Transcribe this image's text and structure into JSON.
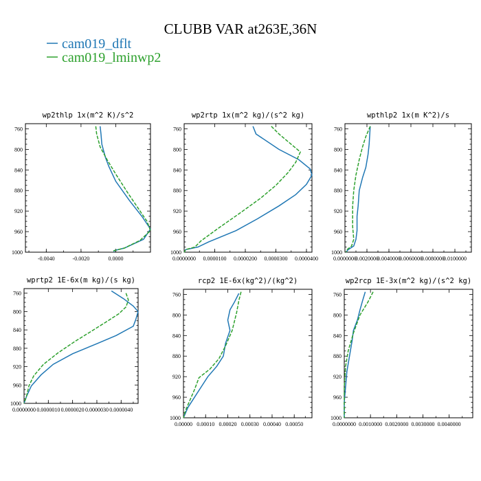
{
  "figure": {
    "title": "CLUBB VAR at263E,36N",
    "legend": [
      {
        "label": "cam019_dflt",
        "color": "#1f77b4"
      },
      {
        "label": "cam019_lminwp2",
        "color": "#2ca02c"
      }
    ]
  },
  "chart_data": [
    {
      "type": "line",
      "title": "wp2thlp  1x(m^2 K)/s^2",
      "xlim": [
        -0.0052,
        0.002
      ],
      "ylim": [
        1000,
        750
      ],
      "xticks": [
        -0.004,
        -0.002,
        0.0
      ],
      "xtick_labels": [
        "-0.0040",
        "-0.0020",
        "0.0000"
      ],
      "yticks": [
        760,
        800,
        840,
        880,
        920,
        960,
        1000
      ],
      "series": [
        {
          "name": "cam019_dflt",
          "color": "#1f77b4",
          "dash": "none",
          "points": [
            [
              -0.0009,
              755
            ],
            [
              -0.00085,
              770
            ],
            [
              -0.0008,
              790
            ],
            [
              -0.0006,
              815
            ],
            [
              -0.0004,
              833
            ],
            [
              0.0,
              862
            ],
            [
              0.0008,
              900
            ],
            [
              0.0015,
              930
            ],
            [
              0.002,
              955
            ],
            [
              0.0016,
              975
            ],
            [
              0.0005,
              992
            ],
            [
              -0.0001,
              997
            ],
            [
              -0.0001,
              1000
            ]
          ]
        },
        {
          "name": "cam019_lminwp2",
          "color": "#2ca02c",
          "dash": "5,2",
          "points": [
            [
              -0.00115,
              755
            ],
            [
              -0.0011,
              770
            ],
            [
              -0.0009,
              795
            ],
            [
              -0.0005,
              820
            ],
            [
              0.0,
              848
            ],
            [
              0.0007,
              885
            ],
            [
              0.0013,
              915
            ],
            [
              0.0018,
              940
            ],
            [
              0.002,
              958
            ],
            [
              0.0014,
              977
            ],
            [
              0.0005,
              992
            ],
            [
              -0.0001,
              997
            ],
            [
              -0.0001,
              1000
            ]
          ]
        }
      ]
    },
    {
      "type": "line",
      "title": "wp2rtp  1x(m^2 kg)/(s^2 kg)",
      "xlim": [
        0.0,
        4.18e-05
      ],
      "ylim": [
        1000,
        750
      ],
      "xticks": [
        0.0,
        1e-05,
        2e-05,
        3e-05,
        4e-05
      ],
      "xtick_labels": [
        "0.0000000",
        "0.0000100",
        "0.0000200",
        "0.0000300",
        "0.0000400"
      ],
      "yticks": [
        760,
        800,
        840,
        880,
        920,
        960,
        1000
      ],
      "series": [
        {
          "name": "cam019_dflt",
          "color": "#1f77b4",
          "dash": "none",
          "points": [
            [
              2.25e-05,
              755
            ],
            [
              2.35e-05,
              770
            ],
            [
              3.1e-05,
              800
            ],
            [
              3.75e-05,
              820
            ],
            [
              4.12e-05,
              838
            ],
            [
              4.18e-05,
              850
            ],
            [
              4e-05,
              868
            ],
            [
              3.65e-05,
              888
            ],
            [
              3.1e-05,
              910
            ],
            [
              2.4e-05,
              935
            ],
            [
              1.7e-05,
              958
            ],
            [
              8e-06,
              980
            ],
            [
              4.5e-06,
              990
            ],
            [
              5e-07,
              995
            ],
            [
              0.0,
              1000
            ]
          ]
        },
        {
          "name": "cam019_lminwp2",
          "color": "#2ca02c",
          "dash": "5,2",
          "points": [
            [
              2.85e-05,
              755
            ],
            [
              3.1e-05,
              770
            ],
            [
              3.5e-05,
              790
            ],
            [
              3.8e-05,
              805
            ],
            [
              3.65e-05,
              825
            ],
            [
              3.4e-05,
              845
            ],
            [
              3e-05,
              870
            ],
            [
              2.5e-05,
              895
            ],
            [
              1.8e-05,
              925
            ],
            [
              1.15e-05,
              952
            ],
            [
              5.5e-06,
              978
            ],
            [
              3.5e-06,
              990
            ],
            [
              5e-07,
              995
            ],
            [
              0.0,
              1000
            ]
          ]
        }
      ]
    },
    {
      "type": "line",
      "title": "wpthlp2  1x(m K^2)/s",
      "xlim": [
        0.0,
        0.0115
      ],
      "ylim": [
        1000,
        750
      ],
      "xticks": [
        0.0,
        0.002,
        0.004,
        0.006,
        0.008,
        0.01
      ],
      "xtick_labels": [
        "0.0000000",
        "0.0020000",
        "0.0040000",
        "0.0060000",
        "0.0080000",
        "0.0100000"
      ],
      "yticks": [
        760,
        800,
        840,
        880,
        920,
        960,
        1000
      ],
      "series": [
        {
          "name": "cam019_dflt",
          "color": "#1f77b4",
          "dash": "none",
          "points": [
            [
              0.0023,
              755
            ],
            [
              0.0022,
              790
            ],
            [
              0.0021,
              810
            ],
            [
              0.0019,
              835
            ],
            [
              0.0016,
              855
            ],
            [
              0.0013,
              880
            ],
            [
              0.0012,
              910
            ],
            [
              0.0011,
              930
            ],
            [
              0.0011,
              958
            ],
            [
              0.001,
              975
            ],
            [
              0.0008,
              988
            ],
            [
              0.0003,
              995
            ],
            [
              0.0001,
              1000
            ]
          ]
        },
        {
          "name": "cam019_lminwp2",
          "color": "#2ca02c",
          "dash": "5,2",
          "points": [
            [
              0.0023,
              755
            ],
            [
              0.0019,
              775
            ],
            [
              0.0016,
              795
            ],
            [
              0.0013,
              820
            ],
            [
              0.001,
              850
            ],
            [
              0.0008,
              880
            ],
            [
              0.0007,
              910
            ],
            [
              0.0007,
              950
            ],
            [
              0.0008,
              975
            ],
            [
              0.0006,
              988
            ],
            [
              0.0002,
              995
            ],
            [
              0.0001,
              1000
            ]
          ]
        }
      ]
    },
    {
      "type": "line",
      "title": "wprtp2  1E-6x(m kg)/(s kg)",
      "xlim": [
        0.0,
        4.7e-06
      ],
      "ylim": [
        1000,
        750
      ],
      "xticks": [
        0.0,
        1e-06,
        2e-06,
        3e-06,
        4e-06
      ],
      "xtick_labels": [
        "0.0000000",
        "0.0000010",
        "0.0000020",
        "0.0000030",
        "0.0000040"
      ],
      "yticks": [
        760,
        800,
        840,
        880,
        920,
        960,
        1000
      ],
      "series": [
        {
          "name": "cam019_dflt",
          "color": "#1f77b4",
          "dash": "none",
          "points": [
            [
              3.6e-06,
              755
            ],
            [
              4.1e-06,
              772
            ],
            [
              4.5e-06,
              788
            ],
            [
              4.7e-06,
              800
            ],
            [
              4.6e-06,
              818
            ],
            [
              4.5e-06,
              832
            ],
            [
              3.8e-06,
              852
            ],
            [
              3e-06,
              870
            ],
            [
              2e-06,
              892
            ],
            [
              1.2e-06,
              915
            ],
            [
              7e-07,
              938
            ],
            [
              3e-07,
              962
            ],
            [
              1e-07,
              985
            ],
            [
              0.0,
              1000
            ]
          ]
        },
        {
          "name": "cam019_lminwp2",
          "color": "#2ca02c",
          "dash": "5,2",
          "points": [
            [
              4.2e-06,
              760
            ],
            [
              4.3e-06,
              775
            ],
            [
              4.2e-06,
              790
            ],
            [
              3.9e-06,
              805
            ],
            [
              3.4e-06,
              822
            ],
            [
              2.8e-06,
              842
            ],
            [
              2.1e-06,
              865
            ],
            [
              1.4e-06,
              890
            ],
            [
              8e-07,
              915
            ],
            [
              4e-07,
              940
            ],
            [
              2e-07,
              962
            ],
            [
              1e-07,
              985
            ],
            [
              0.0,
              1000
            ]
          ]
        }
      ]
    },
    {
      "type": "line",
      "title": "rcp2  1E-6x(kg^2)/(kg^2)",
      "xlim": [
        0.0,
        0.00058
      ],
      "ylim": [
        1000,
        750
      ],
      "xticks": [
        0.0,
        0.0001,
        0.0002,
        0.0003,
        0.0004,
        0.0005
      ],
      "xtick_labels": [
        "0.00000",
        "0.00010",
        "0.00020",
        "0.00030",
        "0.00040",
        "0.00050"
      ],
      "yticks": [
        760,
        800,
        840,
        880,
        920,
        960,
        1000
      ],
      "series": [
        {
          "name": "cam019_dflt",
          "color": "#1f77b4",
          "dash": "none",
          "points": [
            [
              0.00025,
              758
            ],
            [
              0.00023,
              775
            ],
            [
              0.00021,
              790
            ],
            [
              0.0002,
              810
            ],
            [
              0.00021,
              830
            ],
            [
              0.00019,
              855
            ],
            [
              0.00018,
              880
            ],
            [
              0.00015,
              900
            ],
            [
              0.00011,
              920
            ],
            [
              8e-05,
              940
            ],
            [
              5e-05,
              960
            ],
            [
              2e-05,
              980
            ],
            [
              0.0,
              1000
            ]
          ]
        },
        {
          "name": "cam019_lminwp2",
          "color": "#2ca02c",
          "dash": "5,2",
          "points": [
            [
              0.00026,
              755
            ],
            [
              0.00025,
              772
            ],
            [
              0.00024,
              795
            ],
            [
              0.00022,
              830
            ],
            [
              0.00019,
              860
            ],
            [
              0.00016,
              885
            ],
            [
              0.00012,
              905
            ],
            [
              7e-05,
              922
            ],
            [
              5e-05,
              945
            ],
            [
              3e-05,
              965
            ],
            [
              1e-05,
              985
            ],
            [
              0.0,
              1000
            ]
          ]
        }
      ]
    },
    {
      "type": "line",
      "title": "wp2rcp  1E-3x(m^2 kg)/(s^2 kg)",
      "xlim": [
        0.0,
        0.0049
      ],
      "ylim": [
        1000,
        750
      ],
      "xticks": [
        0.0,
        0.001,
        0.002,
        0.003,
        0.004
      ],
      "xtick_labels": [
        "0.0000000",
        "0.0010000",
        "0.0020000",
        "0.0030000",
        "0.0040000"
      ],
      "yticks": [
        760,
        800,
        840,
        880,
        920,
        960,
        1000
      ],
      "series": [
        {
          "name": "cam019_dflt",
          "color": "#1f77b4",
          "dash": "none",
          "points": [
            [
              0.0008,
              755
            ],
            [
              0.0007,
              772
            ],
            [
              0.0006,
              790
            ],
            [
              0.0005,
              810
            ],
            [
              0.00035,
              830
            ],
            [
              0.0003,
              850
            ],
            [
              0.0002,
              880
            ],
            [
              0.0001,
              910
            ],
            [
              5e-05,
              940
            ],
            [
              0.0,
              970
            ],
            [
              0.0,
              1000
            ]
          ]
        },
        {
          "name": "cam019_lminwp2",
          "color": "#2ca02c",
          "dash": "5,2",
          "points": [
            [
              0.0011,
              755
            ],
            [
              0.0009,
              775
            ],
            [
              0.0006,
              800
            ],
            [
              0.00035,
              835
            ],
            [
              0.00015,
              870
            ],
            [
              5e-05,
              900
            ],
            [
              0.0,
              940
            ],
            [
              0.0,
              1000
            ]
          ]
        }
      ]
    }
  ]
}
